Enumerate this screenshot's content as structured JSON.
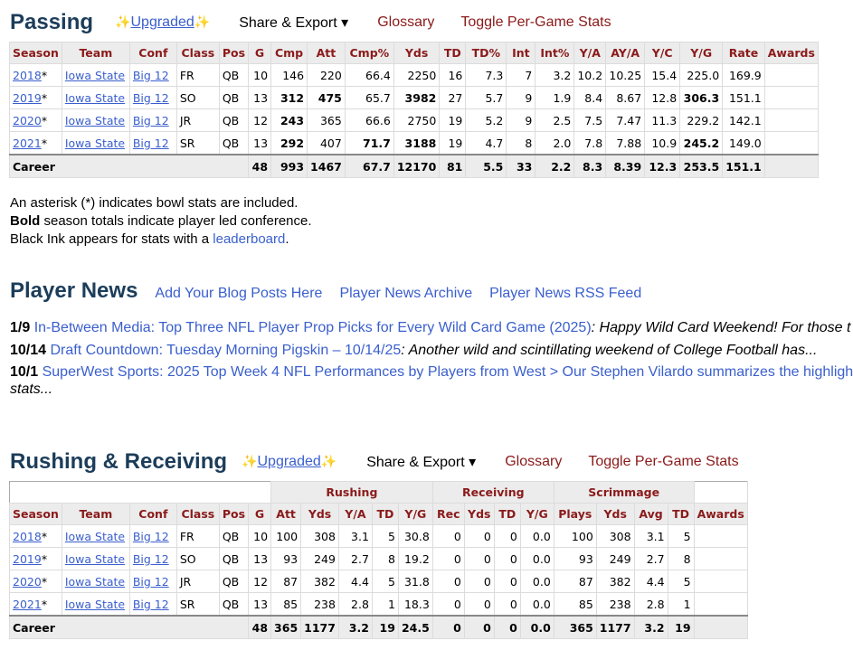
{
  "passing": {
    "title": "Passing",
    "upgraded": "Upgraded",
    "share": "Share & Export ▾",
    "glossary": "Glossary",
    "toggle": "Toggle Per-Game Stats",
    "headers": [
      "Season",
      "Team",
      "Conf",
      "Class",
      "Pos",
      "G",
      "Cmp",
      "Att",
      "Cmp%",
      "Yds",
      "TD",
      "TD%",
      "Int",
      "Int%",
      "Y/A",
      "AY/A",
      "Y/C",
      "Y/G",
      "Rate",
      "Awards"
    ],
    "rows": [
      {
        "season": "2018",
        "team": "Iowa State",
        "conf": "Big 12",
        "cls": "FR",
        "pos": "QB",
        "vals": [
          "10",
          "146",
          "220",
          "66.4",
          "2250",
          "16",
          "7.3",
          "7",
          "3.2",
          "10.2",
          "10.25",
          "15.4",
          "225.0",
          "169.9",
          ""
        ]
      },
      {
        "season": "2019",
        "team": "Iowa State",
        "conf": "Big 12",
        "cls": "SO",
        "pos": "QB",
        "vals": [
          "13",
          "312",
          "475",
          "65.7",
          "3982",
          "27",
          "5.7",
          "9",
          "1.9",
          "8.4",
          "8.67",
          "12.8",
          "306.3",
          "151.1",
          ""
        ]
      },
      {
        "season": "2020",
        "team": "Iowa State",
        "conf": "Big 12",
        "cls": "JR",
        "pos": "QB",
        "vals": [
          "12",
          "243",
          "365",
          "66.6",
          "2750",
          "19",
          "5.2",
          "9",
          "2.5",
          "7.5",
          "7.47",
          "11.3",
          "229.2",
          "142.1",
          ""
        ]
      },
      {
        "season": "2021",
        "team": "Iowa State",
        "conf": "Big 12",
        "cls": "SR",
        "pos": "QB",
        "vals": [
          "13",
          "292",
          "407",
          "71.7",
          "3188",
          "19",
          "4.7",
          "8",
          "2.0",
          "7.8",
          "7.88",
          "10.9",
          "245.2",
          "149.0",
          ""
        ]
      }
    ],
    "career": {
      "label": "Career",
      "vals": [
        "48",
        "993",
        "1467",
        "67.7",
        "12170",
        "81",
        "5.5",
        "33",
        "2.2",
        "8.3",
        "8.39",
        "12.3",
        "253.5",
        "151.1",
        ""
      ]
    }
  },
  "notes": {
    "line1": "An asterisk (*) indicates bowl stats are included.",
    "line2_bold": "Bold",
    "line2_rest": " season totals indicate player led conference.",
    "line3_pre": "Black Ink appears for stats with a ",
    "line3_link": "leaderboard",
    "line3_post": "."
  },
  "news": {
    "title": "Player News",
    "links": [
      "Add Your Blog Posts Here",
      "Player News Archive",
      "Player News RSS Feed"
    ],
    "items": [
      {
        "date": "1/9",
        "link": "In-Between Media: Top Three NFL Player Prop Picks for Every Wild Card Game (2025)",
        "sep": ":",
        "snippet": " Happy Wild Card Weekend! For those t"
      },
      {
        "date": "10/14",
        "link": "Draft Countdown: Tuesday Morning Pigskin – 10/14/25",
        "sep": ":",
        "snippet": " Another wild and scintillating weekend of College Football has..."
      },
      {
        "date": "10/1",
        "link": "SuperWest Sports: 2025 Top Week 4 NFL Performances by Players from West > Our Stephen Vilardo summarizes the highligh",
        "sep": "",
        "snippet": "stats..."
      }
    ]
  },
  "rushing": {
    "title": "Rushing & Receiving",
    "upgraded": "Upgraded",
    "share": "Share & Export ▾",
    "glossary": "Glossary",
    "toggle": "Toggle Per-Game Stats",
    "groups": [
      "Rushing",
      "Receiving",
      "Scrimmage"
    ],
    "headers": [
      "Season",
      "Team",
      "Conf",
      "Class",
      "Pos",
      "G",
      "Att",
      "Yds",
      "Y/A",
      "TD",
      "Y/G",
      "Rec",
      "Yds",
      "TD",
      "Y/G",
      "Plays",
      "Yds",
      "Avg",
      "TD",
      "Awards"
    ],
    "rows": [
      {
        "season": "2018",
        "team": "Iowa State",
        "conf": "Big 12",
        "cls": "FR",
        "pos": "QB",
        "vals": [
          "10",
          "100",
          "308",
          "3.1",
          "5",
          "30.8",
          "0",
          "0",
          "0",
          "0.0",
          "100",
          "308",
          "3.1",
          "5",
          ""
        ]
      },
      {
        "season": "2019",
        "team": "Iowa State",
        "conf": "Big 12",
        "cls": "SO",
        "pos": "QB",
        "vals": [
          "13",
          "93",
          "249",
          "2.7",
          "8",
          "19.2",
          "0",
          "0",
          "0",
          "0.0",
          "93",
          "249",
          "2.7",
          "8",
          ""
        ]
      },
      {
        "season": "2020",
        "team": "Iowa State",
        "conf": "Big 12",
        "cls": "JR",
        "pos": "QB",
        "vals": [
          "12",
          "87",
          "382",
          "4.4",
          "5",
          "31.8",
          "0",
          "0",
          "0",
          "0.0",
          "87",
          "382",
          "4.4",
          "5",
          ""
        ]
      },
      {
        "season": "2021",
        "team": "Iowa State",
        "conf": "Big 12",
        "cls": "SR",
        "pos": "QB",
        "vals": [
          "13",
          "85",
          "238",
          "2.8",
          "1",
          "18.3",
          "0",
          "0",
          "0",
          "0.0",
          "85",
          "238",
          "2.8",
          "1",
          ""
        ]
      }
    ],
    "career": {
      "label": "Career",
      "vals": [
        "48",
        "365",
        "1177",
        "3.2",
        "19",
        "24.5",
        "0",
        "0",
        "0",
        "0.0",
        "365",
        "1177",
        "3.2",
        "19",
        ""
      ]
    }
  }
}
